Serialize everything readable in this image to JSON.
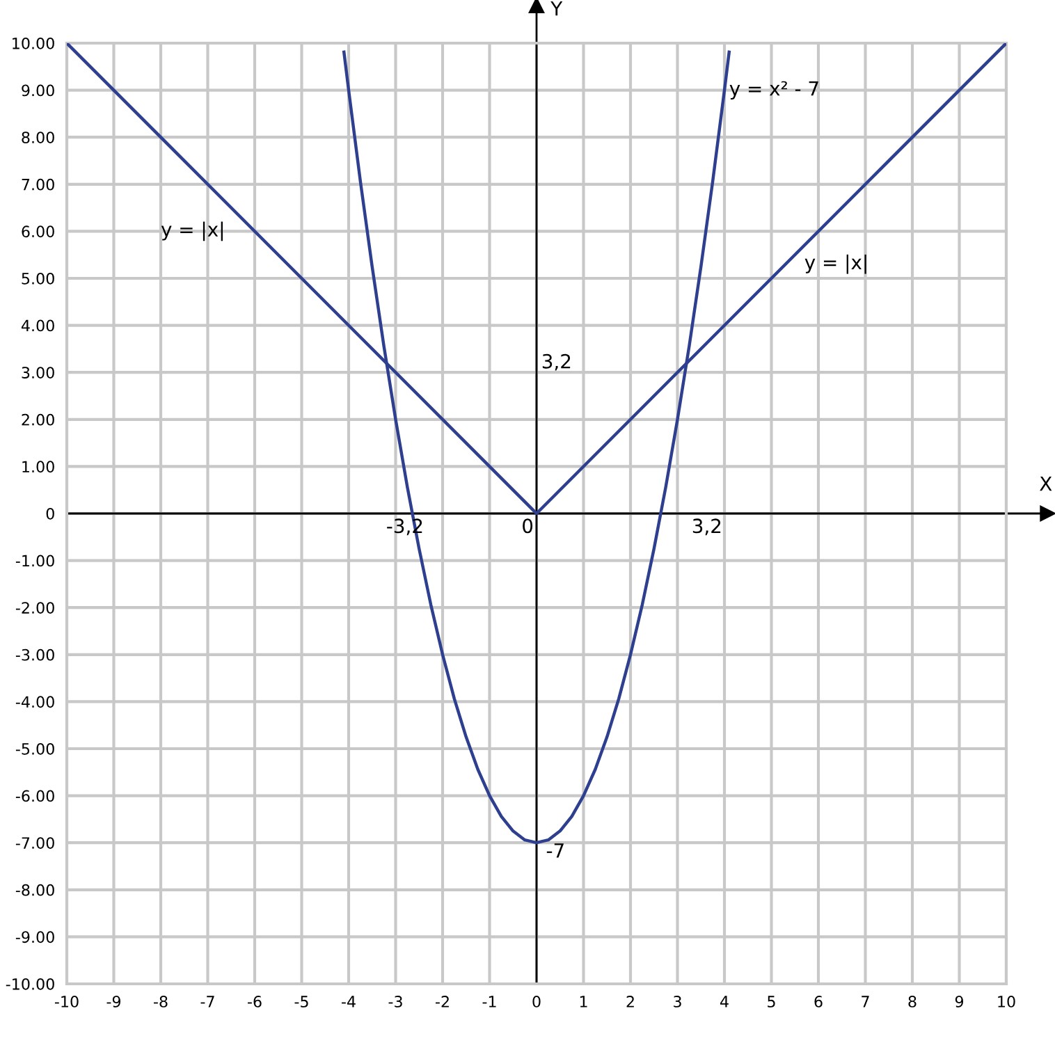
{
  "chart_data": {
    "type": "line",
    "xlabel": "X",
    "ylabel": "Y",
    "series": [
      {
        "color": "#2e3f8f",
        "x": [
          -10,
          0,
          10
        ],
        "values": [
          10,
          0,
          10
        ]
      },
      {
        "color": "#2e3f8f",
        "x": [
          -4.1,
          -4,
          -3.75,
          -3.5,
          -3.25,
          -3,
          -2.75,
          -2.5,
          -2.25,
          -2,
          -1.75,
          -1.5,
          -1.25,
          -1,
          -0.75,
          -0.5,
          -0.25,
          0,
          0.25,
          0.5,
          0.75,
          1,
          1.25,
          1.5,
          1.75,
          2,
          2.25,
          2.5,
          2.75,
          3,
          3.25,
          3.5,
          3.75,
          4,
          4.1
        ],
        "values": [
          9.81,
          9,
          7.06,
          5.25,
          3.56,
          2,
          0.56,
          -0.75,
          -1.94,
          -3,
          -3.94,
          -4.75,
          -5.44,
          -6,
          -6.44,
          -6.75,
          -6.94,
          -7,
          -6.94,
          -6.75,
          -6.44,
          -6,
          -5.44,
          -4.75,
          -3.94,
          -3,
          -1.94,
          -0.75,
          0.56,
          2,
          3.56,
          5.25,
          7.06,
          9,
          9.81
        ]
      }
    ],
    "xlim": [
      -10,
      10
    ],
    "ylim": [
      -10,
      10
    ],
    "xticks": [
      -10,
      -9,
      -8,
      -7,
      -6,
      -5,
      -4,
      -3,
      -2,
      -1,
      0,
      1,
      2,
      3,
      4,
      5,
      6,
      7,
      8,
      9,
      10
    ],
    "yticks": [
      {
        "value": -10,
        "label": "-10.00"
      },
      {
        "value": -9,
        "label": "-9.00"
      },
      {
        "value": -8,
        "label": "-8.00"
      },
      {
        "value": -7,
        "label": "-7.00"
      },
      {
        "value": -6,
        "label": "-6.00"
      },
      {
        "value": -5,
        "label": "-5.00"
      },
      {
        "value": -4,
        "label": "-4.00"
      },
      {
        "value": -3,
        "label": "-3.00"
      },
      {
        "value": -2,
        "label": "-2.00"
      },
      {
        "value": -1,
        "label": "-1.00"
      },
      0,
      {
        "value": 1,
        "label": "1.00"
      },
      {
        "value": 2,
        "label": "2.00"
      },
      {
        "value": 3,
        "label": "3.00"
      },
      {
        "value": 4,
        "label": "4.00"
      },
      {
        "value": 5,
        "label": "5.00"
      },
      {
        "value": 6,
        "label": "6.00"
      },
      {
        "value": 7,
        "label": "7.00"
      },
      {
        "value": 8,
        "label": "8.00"
      },
      {
        "value": 9,
        "label": "9.00"
      },
      {
        "value": 10,
        "label": "10.00"
      }
    ],
    "grid": true,
    "marker": "none",
    "line_style": "solid",
    "annotations": [
      "y = |x|",
      "y = |x|",
      "y = x² - 7",
      "3,2",
      "-3,2",
      "3,2",
      "0",
      "-7"
    ]
  }
}
